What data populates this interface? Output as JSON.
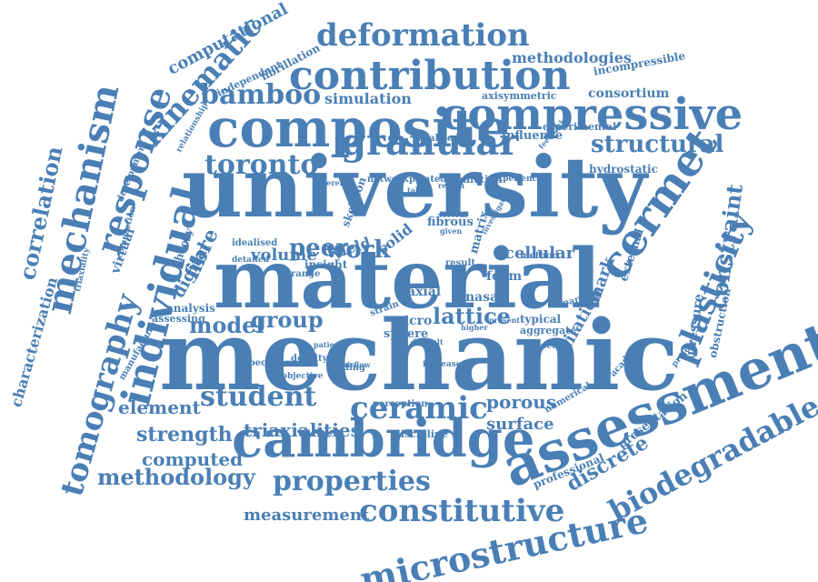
{
  "word_cloud": {
    "color": "#4a7fb5",
    "words": [
      {
        "text": "university"
      },
      {
        "text": "material"
      },
      {
        "text": "mechanic"
      },
      {
        "text": "cambridge"
      },
      {
        "text": "assessment"
      },
      {
        "text": "composite"
      },
      {
        "text": "compressive"
      },
      {
        "text": "contribution"
      },
      {
        "text": "granular"
      },
      {
        "text": "cermet"
      },
      {
        "text": "microstructure"
      },
      {
        "text": "deformation"
      },
      {
        "text": "individual"
      },
      {
        "text": "tomography"
      },
      {
        "text": "mechanism"
      },
      {
        "text": "response"
      },
      {
        "text": "plasticity"
      },
      {
        "text": "constraint"
      },
      {
        "text": "biodegradable"
      },
      {
        "text": "constitutive"
      },
      {
        "text": "properties"
      },
      {
        "text": "ceramic"
      },
      {
        "text": "student"
      },
      {
        "text": "structural"
      },
      {
        "text": "toronto"
      },
      {
        "text": "kinematic"
      },
      {
        "text": "correlation"
      },
      {
        "text": "lattice"
      },
      {
        "text": "methodology"
      },
      {
        "text": "strength"
      },
      {
        "text": "bamboo"
      },
      {
        "text": "group"
      },
      {
        "text": "model"
      },
      {
        "text": "element"
      },
      {
        "text": "peer"
      },
      {
        "text": "work"
      },
      {
        "text": "triaxialities"
      },
      {
        "text": "computed"
      },
      {
        "text": "measurement"
      },
      {
        "text": "discrete"
      },
      {
        "text": "porous"
      },
      {
        "text": "surface"
      },
      {
        "text": "dilation"
      },
      {
        "text": "mark"
      },
      {
        "text": "characterization"
      },
      {
        "text": "computational"
      },
      {
        "text": "methodologies"
      },
      {
        "text": "consortium"
      },
      {
        "text": "fibre"
      },
      {
        "text": "digital"
      },
      {
        "text": "cellular"
      },
      {
        "text": "volume"
      },
      {
        "text": "simulation"
      },
      {
        "text": "yield"
      },
      {
        "text": "solid"
      },
      {
        "text": "pressure"
      },
      {
        "text": "obstruction"
      },
      {
        "text": "professional"
      },
      {
        "text": "presentation"
      },
      {
        "text": "foam"
      },
      {
        "text": "axial"
      },
      {
        "text": "nasal"
      },
      {
        "text": "micro"
      },
      {
        "text": "sphere"
      },
      {
        "text": "typical"
      },
      {
        "text": "aggregate"
      },
      {
        "text": "influence"
      },
      {
        "text": "experimental"
      },
      {
        "text": "hydrostatic"
      },
      {
        "text": "incompressible"
      },
      {
        "text": "axisymmetric"
      },
      {
        "text": "fibrillation"
      },
      {
        "text": "independent"
      },
      {
        "text": "development"
      },
      {
        "text": "relationship"
      },
      {
        "text": "idealized"
      },
      {
        "text": "idealised"
      },
      {
        "text": "theory"
      },
      {
        "text": "virtual"
      },
      {
        "text": "compaction"
      },
      {
        "text": "triaxiality"
      },
      {
        "text": "analysis"
      },
      {
        "text": "assessing"
      },
      {
        "text": "network"
      },
      {
        "text": "printed"
      },
      {
        "text": "prediction"
      },
      {
        "text": "experience"
      },
      {
        "text": "different"
      },
      {
        "text": "fibrous"
      },
      {
        "text": "skeleton"
      },
      {
        "text": "matrix"
      },
      {
        "text": "insight"
      },
      {
        "text": "range"
      },
      {
        "text": "result"
      },
      {
        "text": "method"
      },
      {
        "text": "external"
      },
      {
        "text": "strain"
      },
      {
        "text": "specimen"
      },
      {
        "text": "density"
      },
      {
        "text": "loading"
      },
      {
        "text": "objective"
      },
      {
        "text": "manufacture"
      },
      {
        "text": "perception"
      },
      {
        "text": "increase"
      },
      {
        "text": "numerical"
      },
      {
        "text": "academic"
      },
      {
        "text": "project"
      },
      {
        "text": "specific"
      },
      {
        "text": "present"
      },
      {
        "text": "higher"
      },
      {
        "text": "particle"
      },
      {
        "text": "discipline"
      },
      {
        "text": "several"
      },
      {
        "text": "given"
      },
      {
        "text": "table"
      },
      {
        "text": "region"
      },
      {
        "text": "feedback"
      },
      {
        "text": "detailed"
      },
      {
        "text": "patient"
      },
      {
        "text": "airflow"
      },
      {
        "text": "difficult"
      },
      {
        "text": "investigate"
      }
    ]
  }
}
